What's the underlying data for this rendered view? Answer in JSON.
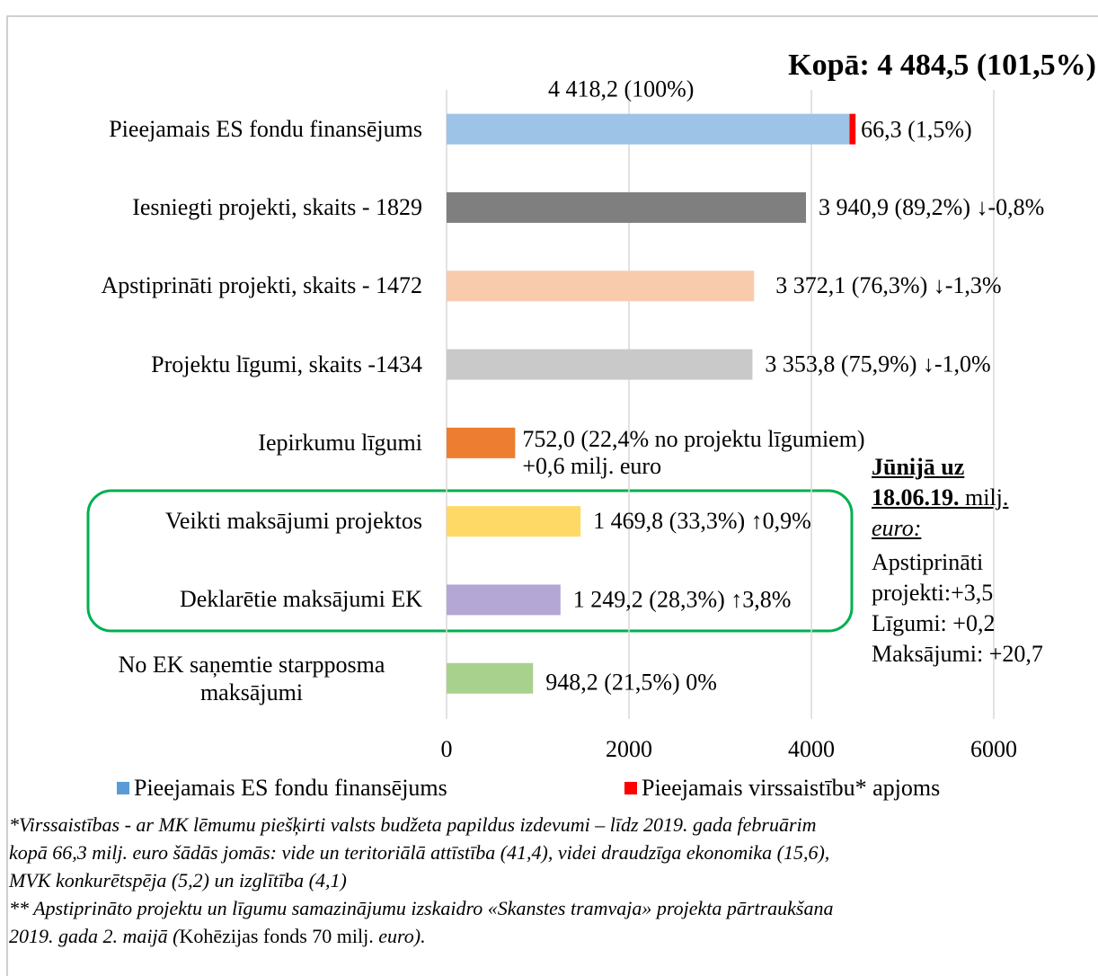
{
  "chart_data": {
    "type": "hbar",
    "title": "Kopā: 4 484,5 (101,5%)",
    "categories": [
      "Pieejamais ES fondu finansējums",
      "Iesniegti projekti, skaits - 1829",
      "Apstiprināti projekti, skaits - 1472",
      "Projektu līgumi, skaits -1434",
      "Iepirkumu līgumi",
      "Veikti maksājumi projektos",
      "Deklarētie maksājumi EK",
      "No EK saņemtie starpposma maksājumi"
    ],
    "series": [
      {
        "name": "Pieejamais ES fondu finansējums",
        "color": "#5b9bd5",
        "bar_colors": [
          "#9dc3e6",
          "#7f7f7f",
          "#f8cbad",
          "#c9c9c9",
          "#ed7d31",
          "#ffd966",
          "#b4a7d6",
          "#a9d18e"
        ],
        "values": [
          4418.2,
          3940.9,
          3372.1,
          3353.8,
          752.0,
          1469.8,
          1249.2,
          948.2
        ],
        "value_labels": [
          "4 418,2 (100%)",
          "3 940,9 (89,2%) ↓-0,8%",
          "3 372,1 (76,3%) ↓-1,3%",
          "3 353,8 (75,9%) ↓-1,0%",
          "752,0 (22,4% no projektu līgumiem)",
          "1 469,8 (33,3%) ↑0,9%",
          "1 249,2 (28,3%) ↑3,8%",
          "948,2 (21,5%) 0%"
        ]
      },
      {
        "name": "Pieejamais virssaistību* apjoms",
        "color": "#ff0000",
        "values": [
          66.3,
          null,
          null,
          null,
          null,
          null,
          null,
          null
        ],
        "value_labels": [
          "66,3 (1,5%)",
          null,
          null,
          null,
          null,
          null,
          null,
          null
        ]
      }
    ],
    "annotations": [
      "+0,6 milj. euro"
    ],
    "xlim": [
      0,
      6000
    ],
    "xticks": [
      0,
      2000,
      4000,
      6000
    ],
    "grid": true,
    "legend": "bottom",
    "side_note": {
      "heading": [
        "Jūnijā uz",
        "18.06.19.",
        "milj.",
        "euro:"
      ],
      "lines": [
        "Apstiprināti",
        "projekti:+3,5",
        "Līgumi: +0,2",
        "Maksājumi: +20,7"
      ]
    },
    "footnotes": [
      "*Virssaistības - ar MK lēmumu piešķirti valsts budžeta papildus izdevumi – līdz 2019. gada februārim",
      "kopā 66,3 milj. euro šādās jomās: vide un teritoriālā attīstība (41,4), videi draudzīga ekonomika (15,6),",
      "MVK konkurētspēja (5,2) un izglītība (4,1)",
      "** Apstiprināto projektu un līgumu samazinājumu izskaidro «Skanstes tramvaja» projekta pārtraukšana",
      [
        "2019. gada 2. maijā (",
        "Kohēzijas fonds 70 milj. ",
        "euro)."
      ]
    ]
  }
}
